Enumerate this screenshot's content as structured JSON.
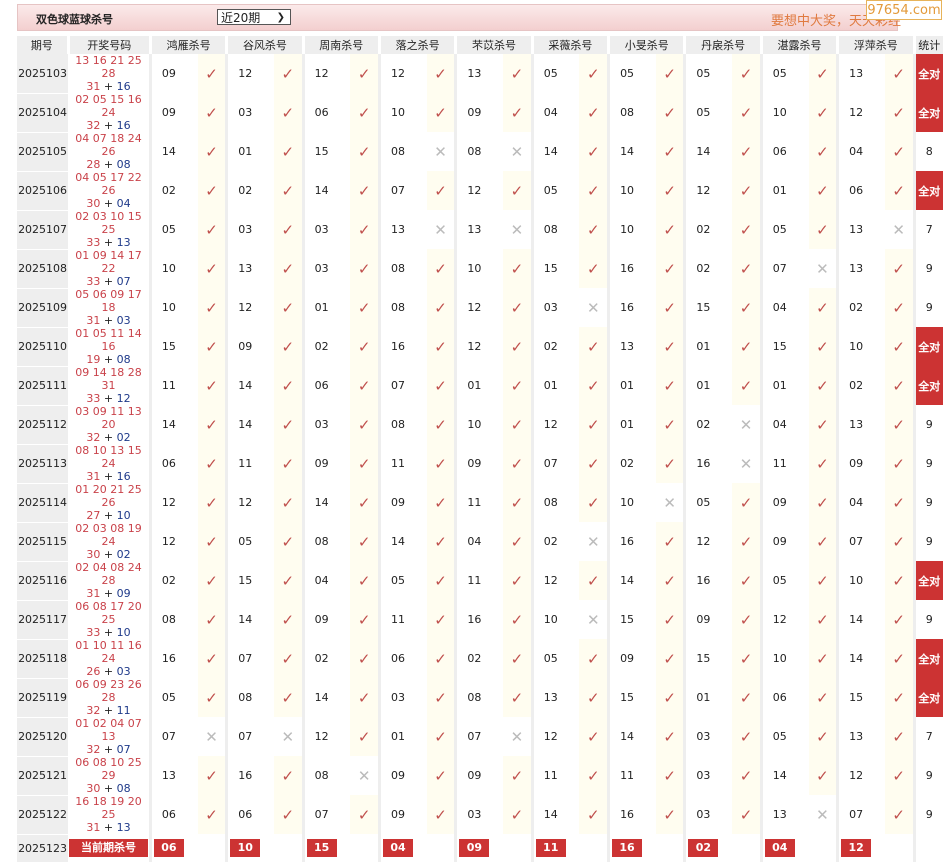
{
  "header": {
    "title": "双色球蓝球杀号",
    "range_select": "近20期",
    "slogan": "要想中大奖，天天彩经",
    "watermark": "97654.com"
  },
  "columns": {
    "period": "期号",
    "draw": "开奖号码",
    "killers": [
      "鸿雁杀号",
      "谷风杀号",
      "周南杀号",
      "落之杀号",
      "芣苡杀号",
      "采薇杀号",
      "小旻杀号",
      "丹扆杀号",
      "湛露杀号",
      "浮萍杀号"
    ],
    "stat": "统计"
  },
  "colors": {
    "accent": "#cc3333",
    "red_ball": "#c9424a",
    "blue_ball": "#1f3a8a",
    "check": "#c0504d",
    "cross": "#bbbbbb"
  },
  "icons": {
    "ok": "check-icon",
    "fail": "cross-icon"
  },
  "rows": [
    {
      "period": "2025103",
      "reds": "13 16 21 25 28",
      "reds2": "31",
      "blue": "16",
      "kills": [
        [
          "09",
          1
        ],
        [
          "12",
          1
        ],
        [
          "12",
          1
        ],
        [
          "12",
          1
        ],
        [
          "13",
          1
        ],
        [
          "05",
          1
        ],
        [
          "05",
          1
        ],
        [
          "05",
          1
        ],
        [
          "05",
          1
        ],
        [
          "13",
          1
        ]
      ],
      "stat": "全对"
    },
    {
      "period": "2025104",
      "reds": "02 05 15 16 24",
      "reds2": "32",
      "blue": "16",
      "kills": [
        [
          "09",
          1
        ],
        [
          "03",
          1
        ],
        [
          "06",
          1
        ],
        [
          "10",
          1
        ],
        [
          "09",
          1
        ],
        [
          "04",
          1
        ],
        [
          "08",
          1
        ],
        [
          "05",
          1
        ],
        [
          "10",
          1
        ],
        [
          "12",
          1
        ]
      ],
      "stat": "全对"
    },
    {
      "period": "2025105",
      "reds": "04 07 18 24 26",
      "reds2": "28",
      "blue": "08",
      "kills": [
        [
          "14",
          1
        ],
        [
          "01",
          1
        ],
        [
          "15",
          1
        ],
        [
          "08",
          0
        ],
        [
          "08",
          0
        ],
        [
          "14",
          1
        ],
        [
          "14",
          1
        ],
        [
          "14",
          1
        ],
        [
          "06",
          1
        ],
        [
          "04",
          1
        ]
      ],
      "stat": "8"
    },
    {
      "period": "2025106",
      "reds": "04 05 17 22 26",
      "reds2": "30",
      "blue": "04",
      "kills": [
        [
          "02",
          1
        ],
        [
          "02",
          1
        ],
        [
          "14",
          1
        ],
        [
          "07",
          1
        ],
        [
          "12",
          1
        ],
        [
          "05",
          1
        ],
        [
          "10",
          1
        ],
        [
          "12",
          1
        ],
        [
          "01",
          1
        ],
        [
          "06",
          1
        ]
      ],
      "stat": "全对"
    },
    {
      "period": "2025107",
      "reds": "02 03 10 15 25",
      "reds2": "33",
      "blue": "13",
      "kills": [
        [
          "05",
          1
        ],
        [
          "03",
          1
        ],
        [
          "03",
          1
        ],
        [
          "13",
          0
        ],
        [
          "13",
          0
        ],
        [
          "08",
          1
        ],
        [
          "10",
          1
        ],
        [
          "02",
          1
        ],
        [
          "05",
          1
        ],
        [
          "13",
          0
        ]
      ],
      "stat": "7"
    },
    {
      "period": "2025108",
      "reds": "01 09 14 17 22",
      "reds2": "33",
      "blue": "07",
      "kills": [
        [
          "10",
          1
        ],
        [
          "13",
          1
        ],
        [
          "03",
          1
        ],
        [
          "08",
          1
        ],
        [
          "10",
          1
        ],
        [
          "15",
          1
        ],
        [
          "16",
          1
        ],
        [
          "02",
          1
        ],
        [
          "07",
          0
        ],
        [
          "13",
          1
        ]
      ],
      "stat": "9"
    },
    {
      "period": "2025109",
      "reds": "05 06 09 17 18",
      "reds2": "31",
      "blue": "03",
      "kills": [
        [
          "10",
          1
        ],
        [
          "12",
          1
        ],
        [
          "01",
          1
        ],
        [
          "08",
          1
        ],
        [
          "12",
          1
        ],
        [
          "03",
          0
        ],
        [
          "16",
          1
        ],
        [
          "15",
          1
        ],
        [
          "04",
          1
        ],
        [
          "02",
          1
        ]
      ],
      "stat": "9"
    },
    {
      "period": "2025110",
      "reds": "01 05 11 14 16",
      "reds2": "19",
      "blue": "08",
      "kills": [
        [
          "15",
          1
        ],
        [
          "09",
          1
        ],
        [
          "02",
          1
        ],
        [
          "16",
          1
        ],
        [
          "12",
          1
        ],
        [
          "02",
          1
        ],
        [
          "13",
          1
        ],
        [
          "01",
          1
        ],
        [
          "15",
          1
        ],
        [
          "10",
          1
        ]
      ],
      "stat": "全对"
    },
    {
      "period": "2025111",
      "reds": "09 14 18 28 31",
      "reds2": "33",
      "blue": "12",
      "kills": [
        [
          "11",
          1
        ],
        [
          "14",
          1
        ],
        [
          "06",
          1
        ],
        [
          "07",
          1
        ],
        [
          "01",
          1
        ],
        [
          "01",
          1
        ],
        [
          "01",
          1
        ],
        [
          "01",
          1
        ],
        [
          "01",
          1
        ],
        [
          "02",
          1
        ]
      ],
      "stat": "全对"
    },
    {
      "period": "2025112",
      "reds": "03 09 11 13 20",
      "reds2": "32",
      "blue": "02",
      "kills": [
        [
          "14",
          1
        ],
        [
          "14",
          1
        ],
        [
          "03",
          1
        ],
        [
          "08",
          1
        ],
        [
          "10",
          1
        ],
        [
          "12",
          1
        ],
        [
          "01",
          1
        ],
        [
          "02",
          0
        ],
        [
          "04",
          1
        ],
        [
          "13",
          1
        ]
      ],
      "stat": "9"
    },
    {
      "period": "2025113",
      "reds": "08 10 13 15 24",
      "reds2": "31",
      "blue": "16",
      "kills": [
        [
          "06",
          1
        ],
        [
          "11",
          1
        ],
        [
          "09",
          1
        ],
        [
          "11",
          1
        ],
        [
          "09",
          1
        ],
        [
          "07",
          1
        ],
        [
          "02",
          1
        ],
        [
          "16",
          0
        ],
        [
          "11",
          1
        ],
        [
          "09",
          1
        ]
      ],
      "stat": "9"
    },
    {
      "period": "2025114",
      "reds": "01 20 21 25 26",
      "reds2": "27",
      "blue": "10",
      "kills": [
        [
          "12",
          1
        ],
        [
          "12",
          1
        ],
        [
          "14",
          1
        ],
        [
          "09",
          1
        ],
        [
          "11",
          1
        ],
        [
          "08",
          1
        ],
        [
          "10",
          0
        ],
        [
          "05",
          1
        ],
        [
          "09",
          1
        ],
        [
          "04",
          1
        ]
      ],
      "stat": "9"
    },
    {
      "period": "2025115",
      "reds": "02 03 08 19 24",
      "reds2": "30",
      "blue": "02",
      "kills": [
        [
          "12",
          1
        ],
        [
          "05",
          1
        ],
        [
          "08",
          1
        ],
        [
          "14",
          1
        ],
        [
          "04",
          1
        ],
        [
          "02",
          0
        ],
        [
          "16",
          1
        ],
        [
          "12",
          1
        ],
        [
          "09",
          1
        ],
        [
          "07",
          1
        ]
      ],
      "stat": "9"
    },
    {
      "period": "2025116",
      "reds": "02 04 08 24 28",
      "reds2": "31",
      "blue": "09",
      "kills": [
        [
          "02",
          1
        ],
        [
          "15",
          1
        ],
        [
          "04",
          1
        ],
        [
          "05",
          1
        ],
        [
          "11",
          1
        ],
        [
          "12",
          1
        ],
        [
          "14",
          1
        ],
        [
          "16",
          1
        ],
        [
          "05",
          1
        ],
        [
          "10",
          1
        ]
      ],
      "stat": "全对"
    },
    {
      "period": "2025117",
      "reds": "06 08 17 20 25",
      "reds2": "33",
      "blue": "10",
      "kills": [
        [
          "08",
          1
        ],
        [
          "14",
          1
        ],
        [
          "09",
          1
        ],
        [
          "11",
          1
        ],
        [
          "16",
          1
        ],
        [
          "10",
          0
        ],
        [
          "15",
          1
        ],
        [
          "09",
          1
        ],
        [
          "12",
          1
        ],
        [
          "14",
          1
        ]
      ],
      "stat": "9"
    },
    {
      "period": "2025118",
      "reds": "01 10 11 16 24",
      "reds2": "26",
      "blue": "03",
      "kills": [
        [
          "16",
          1
        ],
        [
          "07",
          1
        ],
        [
          "02",
          1
        ],
        [
          "06",
          1
        ],
        [
          "02",
          1
        ],
        [
          "05",
          1
        ],
        [
          "09",
          1
        ],
        [
          "15",
          1
        ],
        [
          "10",
          1
        ],
        [
          "14",
          1
        ]
      ],
      "stat": "全对"
    },
    {
      "period": "2025119",
      "reds": "06 09 23 26 28",
      "reds2": "32",
      "blue": "11",
      "kills": [
        [
          "05",
          1
        ],
        [
          "08",
          1
        ],
        [
          "14",
          1
        ],
        [
          "03",
          1
        ],
        [
          "08",
          1
        ],
        [
          "13",
          1
        ],
        [
          "15",
          1
        ],
        [
          "01",
          1
        ],
        [
          "06",
          1
        ],
        [
          "15",
          1
        ]
      ],
      "stat": "全对"
    },
    {
      "period": "2025120",
      "reds": "01 02 04 07 13",
      "reds2": "32",
      "blue": "07",
      "kills": [
        [
          "07",
          0
        ],
        [
          "07",
          0
        ],
        [
          "12",
          1
        ],
        [
          "01",
          1
        ],
        [
          "07",
          0
        ],
        [
          "12",
          1
        ],
        [
          "14",
          1
        ],
        [
          "03",
          1
        ],
        [
          "05",
          1
        ],
        [
          "13",
          1
        ]
      ],
      "stat": "7"
    },
    {
      "period": "2025121",
      "reds": "06 08 10 25 29",
      "reds2": "30",
      "blue": "08",
      "kills": [
        [
          "13",
          1
        ],
        [
          "16",
          1
        ],
        [
          "08",
          0
        ],
        [
          "09",
          1
        ],
        [
          "09",
          1
        ],
        [
          "11",
          1
        ],
        [
          "11",
          1
        ],
        [
          "03",
          1
        ],
        [
          "14",
          1
        ],
        [
          "12",
          1
        ]
      ],
      "stat": "9"
    },
    {
      "period": "2025122",
      "reds": "16 18 19 20 25",
      "reds2": "31",
      "blue": "13",
      "kills": [
        [
          "06",
          1
        ],
        [
          "06",
          1
        ],
        [
          "07",
          1
        ],
        [
          "09",
          1
        ],
        [
          "03",
          1
        ],
        [
          "14",
          1
        ],
        [
          "16",
          1
        ],
        [
          "03",
          1
        ],
        [
          "13",
          0
        ],
        [
          "07",
          1
        ]
      ],
      "stat": "9"
    }
  ],
  "current": {
    "period": "2025123",
    "label": "当前期杀号",
    "kills": [
      "06",
      "10",
      "15",
      "04",
      "09",
      "11",
      "16",
      "02",
      "04",
      "12"
    ]
  }
}
